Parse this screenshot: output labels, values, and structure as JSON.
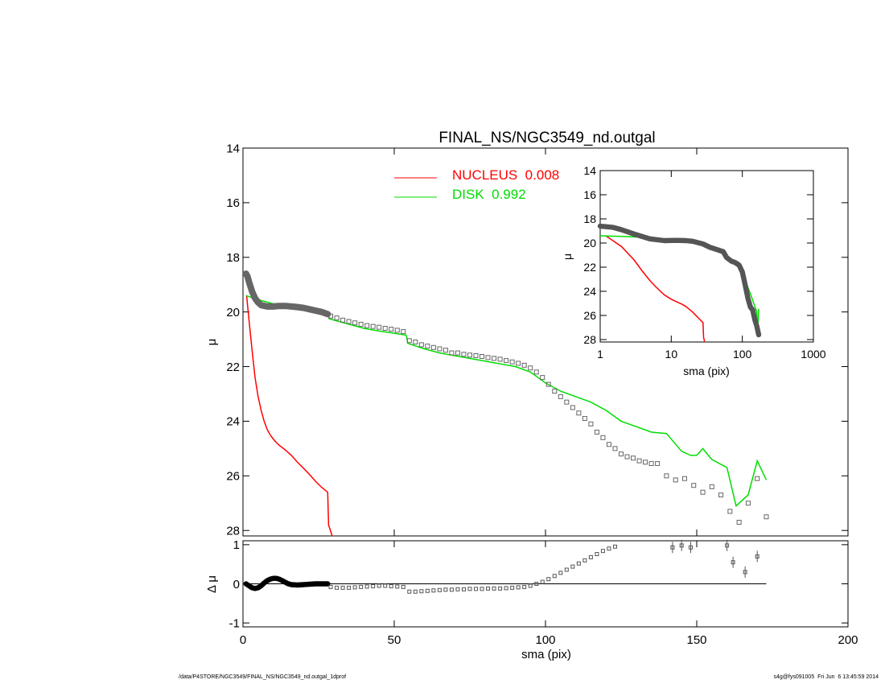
{
  "chart_data": [
    {
      "type": "line",
      "title": "FINAL_NS/NGC3549_nd.outgal",
      "xlabel": "",
      "ylabel": "μ",
      "xlim": [
        0,
        200
      ],
      "ylim": [
        28.2,
        14
      ],
      "y_inverted": true,
      "yticks": [
        14,
        16,
        18,
        20,
        22,
        24,
        26,
        28
      ],
      "legend": {
        "placement": "top-center",
        "entries": [
          {
            "label": "NUCLEUS  0.008",
            "color": "#ff0000"
          },
          {
            "label": "DISK  0.992",
            "color": "#00dd00"
          }
        ]
      },
      "series": [
        {
          "name": "NUCLEUS  0.008",
          "style": "line",
          "color": "#ff0000",
          "x": [
            1.2,
            2,
            3,
            4,
            5,
            6,
            7,
            8,
            9,
            10,
            11,
            12,
            14,
            16,
            18,
            20,
            22,
            24,
            26,
            28,
            28.3,
            29.5
          ],
          "y": [
            19.4,
            20.3,
            21.4,
            22.4,
            23.1,
            23.6,
            24.0,
            24.3,
            24.5,
            24.65,
            24.78,
            24.88,
            25.05,
            25.25,
            25.5,
            25.72,
            25.95,
            26.2,
            26.42,
            26.6,
            27.8,
            28.2
          ]
        },
        {
          "name": "DISK  0.992",
          "style": "line",
          "color": "#00dd00",
          "x": [
            1,
            5,
            10,
            15,
            20,
            25,
            28,
            28.5,
            35,
            40,
            45,
            50,
            54,
            54.5,
            60,
            65,
            70,
            80,
            90,
            95,
            100,
            105,
            110,
            115,
            120,
            125,
            130,
            135,
            140,
            145,
            148,
            150,
            152,
            155,
            160,
            163,
            167,
            170,
            173
          ],
          "y": [
            19.4,
            19.55,
            19.7,
            19.75,
            19.85,
            19.95,
            20.05,
            20.25,
            20.45,
            20.6,
            20.7,
            20.78,
            20.85,
            21.15,
            21.35,
            21.5,
            21.6,
            21.8,
            22.0,
            22.2,
            22.6,
            22.9,
            23.1,
            23.3,
            23.6,
            24.0,
            24.2,
            24.4,
            24.45,
            25.1,
            25.25,
            25.25,
            25.0,
            25.4,
            25.7,
            27.1,
            26.7,
            25.45,
            26.15
          ]
        },
        {
          "name": "",
          "style": "dense-markers",
          "color": "#666666",
          "x": [
            1,
            1.5,
            2,
            3,
            4,
            5,
            6,
            8,
            10,
            12,
            14,
            16,
            18,
            20,
            22,
            24,
            26,
            28
          ],
          "y": [
            18.6,
            18.7,
            18.9,
            19.25,
            19.5,
            19.65,
            19.75,
            19.8,
            19.8,
            19.78,
            19.78,
            19.8,
            19.82,
            19.85,
            19.9,
            19.95,
            20.0,
            20.08
          ]
        },
        {
          "name": "",
          "style": "square-markers",
          "color": "#666666",
          "x": [
            29,
            31,
            33,
            35,
            37,
            39,
            41,
            43,
            45,
            47,
            49,
            51,
            53,
            55,
            57,
            59,
            61,
            63,
            65,
            67,
            69,
            71,
            73,
            75,
            77,
            79,
            81,
            83,
            85,
            87,
            89,
            91,
            93,
            95,
            97,
            99,
            101,
            103,
            105,
            107,
            109,
            111,
            113,
            115,
            117,
            119,
            121,
            123,
            125,
            127,
            129,
            131,
            133,
            135,
            137,
            140,
            143,
            146,
            149,
            152,
            155,
            158,
            161,
            164,
            167,
            170,
            173
          ],
          "y": [
            20.15,
            20.22,
            20.3,
            20.35,
            20.4,
            20.45,
            20.5,
            20.53,
            20.56,
            20.6,
            20.63,
            20.67,
            20.72,
            21.05,
            21.1,
            21.2,
            21.25,
            21.3,
            21.35,
            21.4,
            21.5,
            21.5,
            21.55,
            21.58,
            21.6,
            21.63,
            21.67,
            21.7,
            21.73,
            21.78,
            21.83,
            21.88,
            21.95,
            22.05,
            22.2,
            22.4,
            22.65,
            22.9,
            23.1,
            23.3,
            23.5,
            23.7,
            23.9,
            24.1,
            24.4,
            24.6,
            24.85,
            25.0,
            25.2,
            25.3,
            25.35,
            25.45,
            25.5,
            25.55,
            25.55,
            26.0,
            26.15,
            26.1,
            26.35,
            26.6,
            26.4,
            26.7,
            27.3,
            27.7,
            27.0,
            26.1,
            27.5
          ]
        }
      ]
    },
    {
      "type": "scatter",
      "title": "",
      "xlabel": "sma (pix)",
      "ylabel": "Δ μ",
      "xlim": [
        0,
        200
      ],
      "ylim": [
        -1.1,
        1.1
      ],
      "xticks": [
        0,
        50,
        100,
        150,
        200
      ],
      "yticks": [
        -1,
        0,
        1
      ],
      "zero_line": true,
      "series": [
        {
          "name": "",
          "style": "dense-markers",
          "color": "#000000",
          "x": [
            1,
            2,
            3,
            4,
            5,
            6,
            7,
            8,
            9,
            10,
            11,
            12,
            13,
            14,
            15,
            16,
            18,
            20,
            22,
            24,
            26,
            28
          ],
          "y": [
            0,
            -0.05,
            -0.1,
            -0.12,
            -0.1,
            -0.05,
            0.02,
            0.08,
            0.12,
            0.14,
            0.14,
            0.12,
            0.08,
            0.04,
            0.0,
            -0.02,
            -0.03,
            -0.02,
            -0.01,
            0.0,
            0.0,
            0.0
          ]
        },
        {
          "name": "",
          "style": "square-markers",
          "color": "#555555",
          "x": [
            29,
            31,
            33,
            35,
            37,
            39,
            41,
            43,
            45,
            47,
            49,
            51,
            53,
            55,
            57,
            59,
            61,
            63,
            65,
            67,
            69,
            71,
            73,
            75,
            77,
            79,
            81,
            83,
            85,
            87,
            89,
            91,
            93,
            95,
            97,
            99,
            101,
            103,
            105,
            107,
            109,
            111,
            113,
            115,
            117,
            119,
            121,
            123
          ],
          "y": [
            -0.08,
            -0.1,
            -0.1,
            -0.1,
            -0.09,
            -0.08,
            -0.07,
            -0.06,
            -0.05,
            -0.05,
            -0.06,
            -0.07,
            -0.08,
            -0.2,
            -0.2,
            -0.19,
            -0.18,
            -0.17,
            -0.16,
            -0.15,
            -0.15,
            -0.14,
            -0.14,
            -0.13,
            -0.13,
            -0.13,
            -0.12,
            -0.12,
            -0.12,
            -0.11,
            -0.1,
            -0.09,
            -0.08,
            -0.05,
            0.0,
            0.05,
            0.12,
            0.2,
            0.28,
            0.36,
            0.44,
            0.52,
            0.6,
            0.68,
            0.76,
            0.84,
            0.9,
            0.95
          ]
        },
        {
          "name": "",
          "style": "error-markers",
          "color": "#555555",
          "x": [
            142,
            145,
            148,
            160,
            162,
            166,
            170
          ],
          "y": [
            0.93,
            0.98,
            0.93,
            0.98,
            0.55,
            0.3,
            0.7
          ]
        }
      ]
    },
    {
      "type": "line",
      "title": "",
      "xlabel": "sma (pix)",
      "ylabel": "μ",
      "x_scale": "log",
      "xlim": [
        1,
        1000
      ],
      "ylim": [
        28.2,
        14
      ],
      "y_inverted": true,
      "xticks": [
        1,
        10,
        100,
        1000
      ],
      "yticks": [
        14,
        16,
        18,
        20,
        22,
        24,
        26,
        28
      ],
      "series": [
        {
          "name": "",
          "style": "line",
          "color": "#ff0000",
          "x": [
            1.2,
            2,
            3,
            4,
            5,
            6,
            8,
            10,
            12,
            14,
            16,
            20,
            24,
            28,
            28.5,
            29.5
          ],
          "y": [
            19.4,
            20.3,
            21.4,
            22.4,
            23.1,
            23.6,
            24.3,
            24.65,
            24.88,
            25.05,
            25.25,
            25.72,
            26.2,
            26.6,
            27.8,
            28.2
          ]
        },
        {
          "name": "",
          "style": "line",
          "color": "#00dd00",
          "x": [
            1,
            2,
            5,
            10,
            20,
            28,
            40,
            54,
            70,
            90,
            110,
            130,
            150,
            160,
            163,
            167,
            170
          ],
          "y": [
            19.4,
            19.45,
            19.55,
            19.7,
            19.85,
            20.05,
            20.6,
            20.85,
            21.6,
            22.0,
            23.1,
            24.2,
            25.25,
            25.7,
            27.1,
            26.7,
            25.45
          ]
        },
        {
          "name": "",
          "style": "dense-markers",
          "color": "#555555",
          "x": [
            1,
            1.5,
            2,
            3,
            5,
            8,
            12,
            16,
            20,
            28,
            35,
            45,
            54,
            60,
            70,
            80,
            90,
            100,
            110,
            120,
            130,
            140,
            150,
            160,
            170
          ],
          "y": [
            18.6,
            18.7,
            18.9,
            19.25,
            19.65,
            19.8,
            19.78,
            19.8,
            19.85,
            20.08,
            20.35,
            20.56,
            20.72,
            21.2,
            21.5,
            21.63,
            21.83,
            22.4,
            23.5,
            24.6,
            25.3,
            25.55,
            26.35,
            26.9,
            27.6
          ]
        }
      ]
    }
  ],
  "footer": {
    "left": "/data/P4STORE/NGC3549/FINAL_NS/NGC3549_nd.outgal_1dprof",
    "right": "s4g@fys091005  Fri Jun  6 13:45:59 2014"
  }
}
